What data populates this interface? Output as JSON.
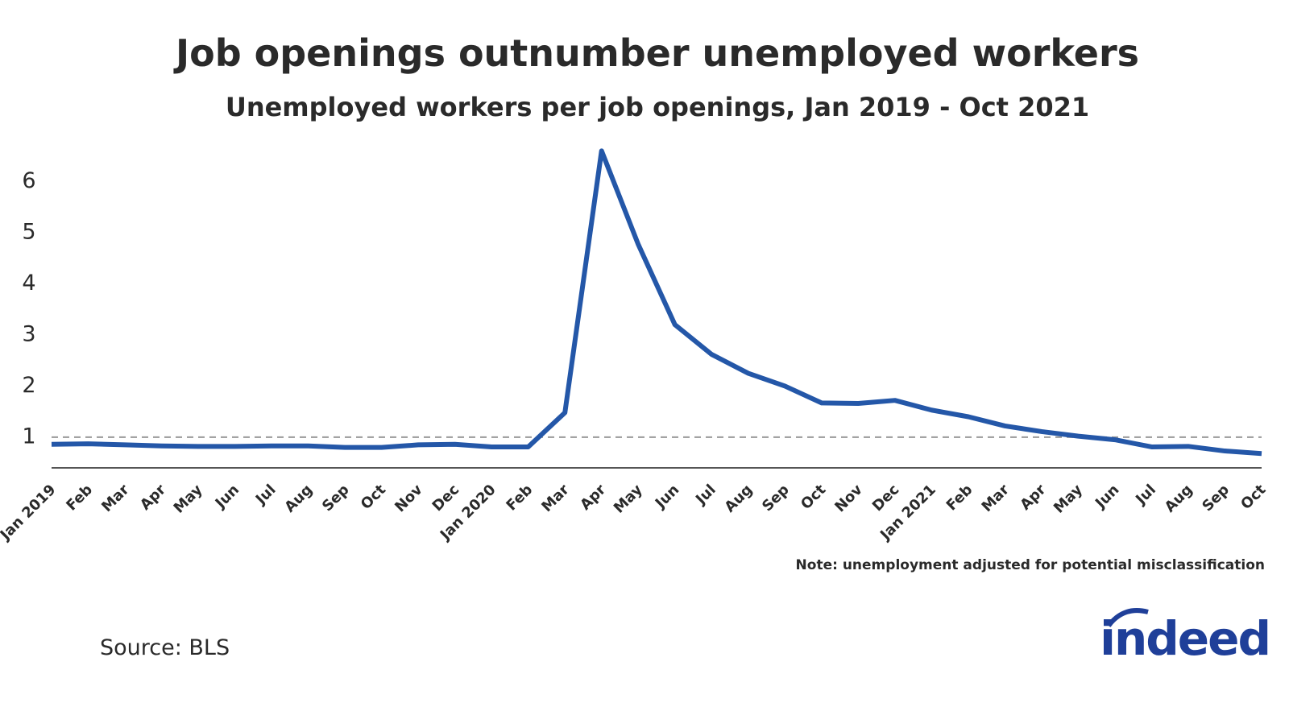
{
  "chart_data": {
    "type": "line",
    "title": "Job openings outnumber unemployed workers",
    "subtitle": "Unemployed workers per job openings, Jan 2019 - Oct 2021",
    "note": "Note: unemployment adjusted for potential misclassification",
    "source": "Source: BLS",
    "logo": "indeed",
    "categories": [
      "Jan 2019",
      "Feb",
      "Mar",
      "Apr",
      "May",
      "Jun",
      "Jul",
      "Aug",
      "Sep",
      "Oct",
      "Nov",
      "Dec",
      "Jan 2020",
      "Feb",
      "Mar",
      "Apr",
      "May",
      "Jun",
      "Jul",
      "Aug",
      "Sep",
      "Oct",
      "Nov",
      "Dec",
      "Jan 2021",
      "Feb",
      "Mar",
      "Apr",
      "May",
      "Jun",
      "Jul",
      "Aug",
      "Sep",
      "Oct"
    ],
    "series": [
      {
        "color": "#2457a8",
        "values": [
          0.86,
          0.87,
          0.85,
          0.83,
          0.82,
          0.82,
          0.83,
          0.83,
          0.8,
          0.8,
          0.85,
          0.86,
          0.81,
          0.81,
          1.48,
          6.6,
          4.77,
          3.2,
          2.62,
          2.25,
          2.0,
          1.67,
          1.66,
          1.72,
          1.53,
          1.4,
          1.22,
          1.11,
          1.02,
          0.95,
          0.81,
          0.82,
          0.73,
          0.68
        ]
      }
    ],
    "reference_line": 1,
    "ylim": [
      0.4,
      6.7
    ],
    "yticks": [
      1,
      2,
      3,
      4,
      5,
      6
    ],
    "grid": false
  }
}
